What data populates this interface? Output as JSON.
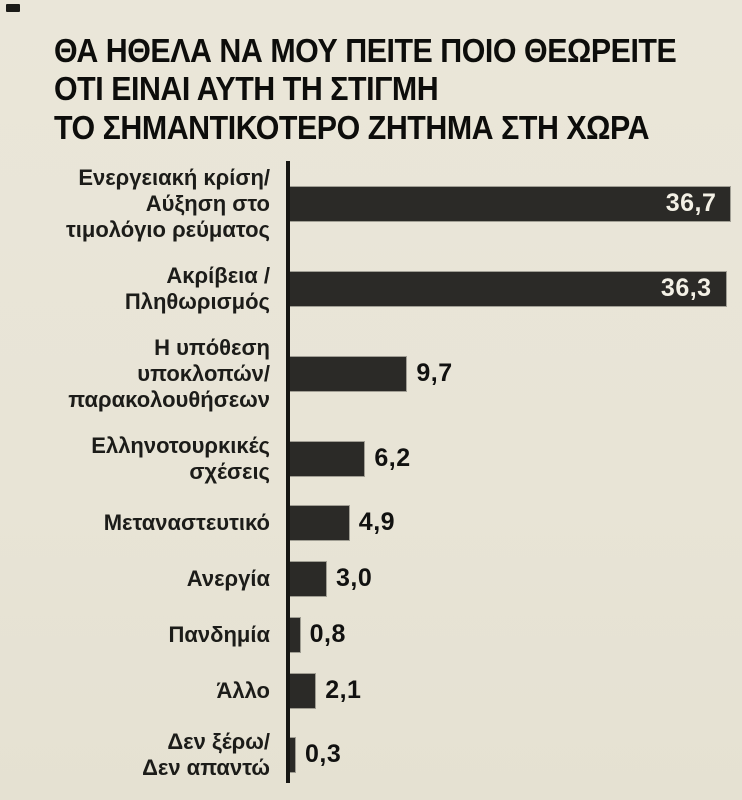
{
  "page": {
    "background_color": "#e8e4d6",
    "bar_color": "#2b2a27",
    "title_color": "#0d0d0b"
  },
  "chart_data": {
    "type": "bar",
    "orientation": "horizontal",
    "title_lines": [
      "ΘΑ ΗΘΕΛΑ ΝΑ ΜΟΥ ΠΕΙΤΕ ΠΟΙΟ ΘΕΩΡΕΙΤΕ",
      "ΟΤΙ ΕΙΝΑΙ ΑΥΤΗ ΤΗ ΣΤΙΓΜΗ",
      "ΤΟ ΣΗΜΑΝΤΙΚΟΤΕΡΟ ΖΗΤΗΜΑ ΣΤΗ ΧΩΡΑ"
    ],
    "value_format": "comma-decimal",
    "xlim": [
      0,
      40
    ],
    "grid": false,
    "legend": false,
    "categories": [
      "Ενεργειακή κρίση/ Αύξηση στο τιμολόγιο ρεύματος",
      "Ακρίβεια / Πληθωρισμός",
      "Η υπόθεση υποκλοπών/ παρακολουθήσεων",
      "Ελληνοτουρκικές σχέσεις",
      "Μεταναστευτικό",
      "Ανεργία",
      "Πανδημία",
      "Άλλο",
      "Δεν ξέρω/ Δεν απαντώ"
    ],
    "values": [
      36.7,
      36.3,
      9.7,
      6.2,
      4.9,
      3.0,
      0.8,
      2.1,
      0.3
    ],
    "rows": [
      {
        "label_lines": [
          "Ενεργειακή κρίση/",
          "Αύξηση στο",
          "τιμολόγιο ρεύματος"
        ],
        "value": 36.7,
        "value_label": "36,7",
        "value_inside": true
      },
      {
        "label_lines": [
          "Ακρίβεια /",
          "Πληθωρισμός"
        ],
        "value": 36.3,
        "value_label": "36,3",
        "value_inside": true
      },
      {
        "label_lines": [
          "Η υπόθεση",
          "υποκλοπών/",
          "παρακολουθήσεων"
        ],
        "value": 9.7,
        "value_label": "9,7",
        "value_inside": false
      },
      {
        "label_lines": [
          "Ελληνοτουρκικές",
          "σχέσεις"
        ],
        "value": 6.2,
        "value_label": "6,2",
        "value_inside": false
      },
      {
        "label_lines": [
          "Μεταναστευτικό"
        ],
        "value": 4.9,
        "value_label": "4,9",
        "value_inside": false
      },
      {
        "label_lines": [
          "Ανεργία"
        ],
        "value": 3.0,
        "value_label": "3,0",
        "value_inside": false
      },
      {
        "label_lines": [
          "Πανδημία"
        ],
        "value": 0.8,
        "value_label": "0,8",
        "value_inside": false
      },
      {
        "label_lines": [
          "Άλλο"
        ],
        "value": 2.1,
        "value_label": "2,1",
        "value_inside": false
      },
      {
        "label_lines": [
          "Δεν ξέρω/",
          "Δεν απαντώ"
        ],
        "value": 0.3,
        "value_label": "0,3",
        "value_inside": false
      }
    ]
  }
}
